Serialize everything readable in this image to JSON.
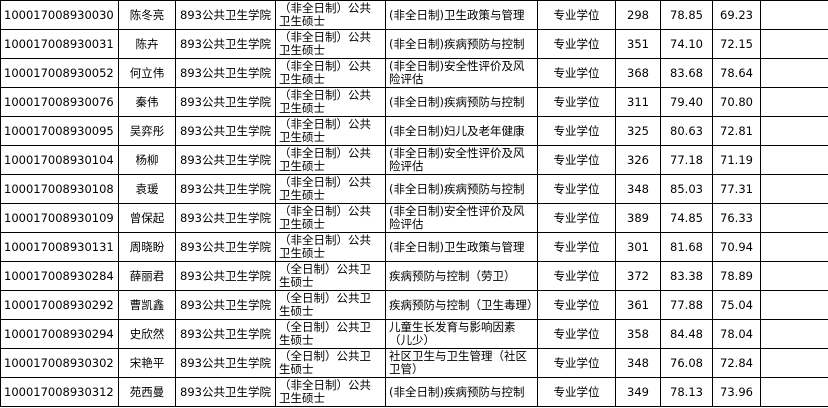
{
  "table": {
    "rows": [
      [
        "100017008930030",
        "陈冬亮",
        "893公共卫生学院",
        "（非全日制）公共卫生硕士",
        "(非全日制)卫生政策与管理",
        "专业学位",
        "298",
        "78.85",
        "69.23"
      ],
      [
        "100017008930031",
        "陈卉",
        "893公共卫生学院",
        "（非全日制）公共卫生硕士",
        "(非全日制)疾病预防与控制",
        "专业学位",
        "351",
        "74.10",
        "72.15"
      ],
      [
        "100017008930052",
        "何立伟",
        "893公共卫生学院",
        "（非全日制）公共卫生硕士",
        "(非全日制)安全性评价及风险评估",
        "专业学位",
        "368",
        "83.68",
        "78.64"
      ],
      [
        "100017008930076",
        "秦伟",
        "893公共卫生学院",
        "（非全日制）公共卫生硕士",
        "(非全日制)疾病预防与控制",
        "专业学位",
        "311",
        "79.40",
        "70.80"
      ],
      [
        "100017008930095",
        "吴弈彤",
        "893公共卫生学院",
        "（非全日制）公共卫生硕士",
        "(非全日制)妇儿及老年健康",
        "专业学位",
        "325",
        "80.63",
        "72.81"
      ],
      [
        "100017008930104",
        "杨柳",
        "893公共卫生学院",
        "（非全日制）公共卫生硕士",
        "(非全日制)安全性评价及风险评估",
        "专业学位",
        "326",
        "77.18",
        "71.19"
      ],
      [
        "100017008930108",
        "袁瑗",
        "893公共卫生学院",
        "（非全日制）公共卫生硕士",
        "(非全日制)疾病预防与控制",
        "专业学位",
        "348",
        "85.03",
        "77.31"
      ],
      [
        "100017008930109",
        "曾保起",
        "893公共卫生学院",
        "（非全日制）公共卫生硕士",
        "(非全日制)安全性评价及风险评估",
        "专业学位",
        "389",
        "74.85",
        "76.33"
      ],
      [
        "100017008930131",
        "周晓盼",
        "893公共卫生学院",
        "（非全日制）公共卫生硕士",
        "(非全日制)卫生政策与管理",
        "专业学位",
        "301",
        "81.68",
        "70.94"
      ],
      [
        "100017008930284",
        "薛丽君",
        "893公共卫生学院",
        "（全日制）公共卫生硕士",
        "疾病预防与控制（劳卫）",
        "专业学位",
        "372",
        "83.38",
        "78.89"
      ],
      [
        "100017008930292",
        "曹凯鑫",
        "893公共卫生学院",
        "（全日制）公共卫生硕士",
        "疾病预防与控制（卫生毒理）",
        "专业学位",
        "361",
        "77.88",
        "75.04"
      ],
      [
        "100017008930294",
        "史欣然",
        "893公共卫生学院",
        "（全日制）公共卫生硕士",
        "儿童生长发育与影响因素（儿少）",
        "专业学位",
        "358",
        "84.48",
        "78.04"
      ],
      [
        "100017008930302",
        "宋艳平",
        "893公共卫生学院",
        "（全日制）公共卫生硕士",
        "社区卫生与卫生管理（社区卫管）",
        "专业学位",
        "348",
        "76.08",
        "72.84"
      ],
      [
        "100017008930312",
        "苑西曼",
        "893公共卫生学院",
        "（非全日制）公共卫生硕士",
        "(非全日制)疾病预防与控制",
        "专业学位",
        "349",
        "78.13",
        "73.96"
      ]
    ]
  }
}
